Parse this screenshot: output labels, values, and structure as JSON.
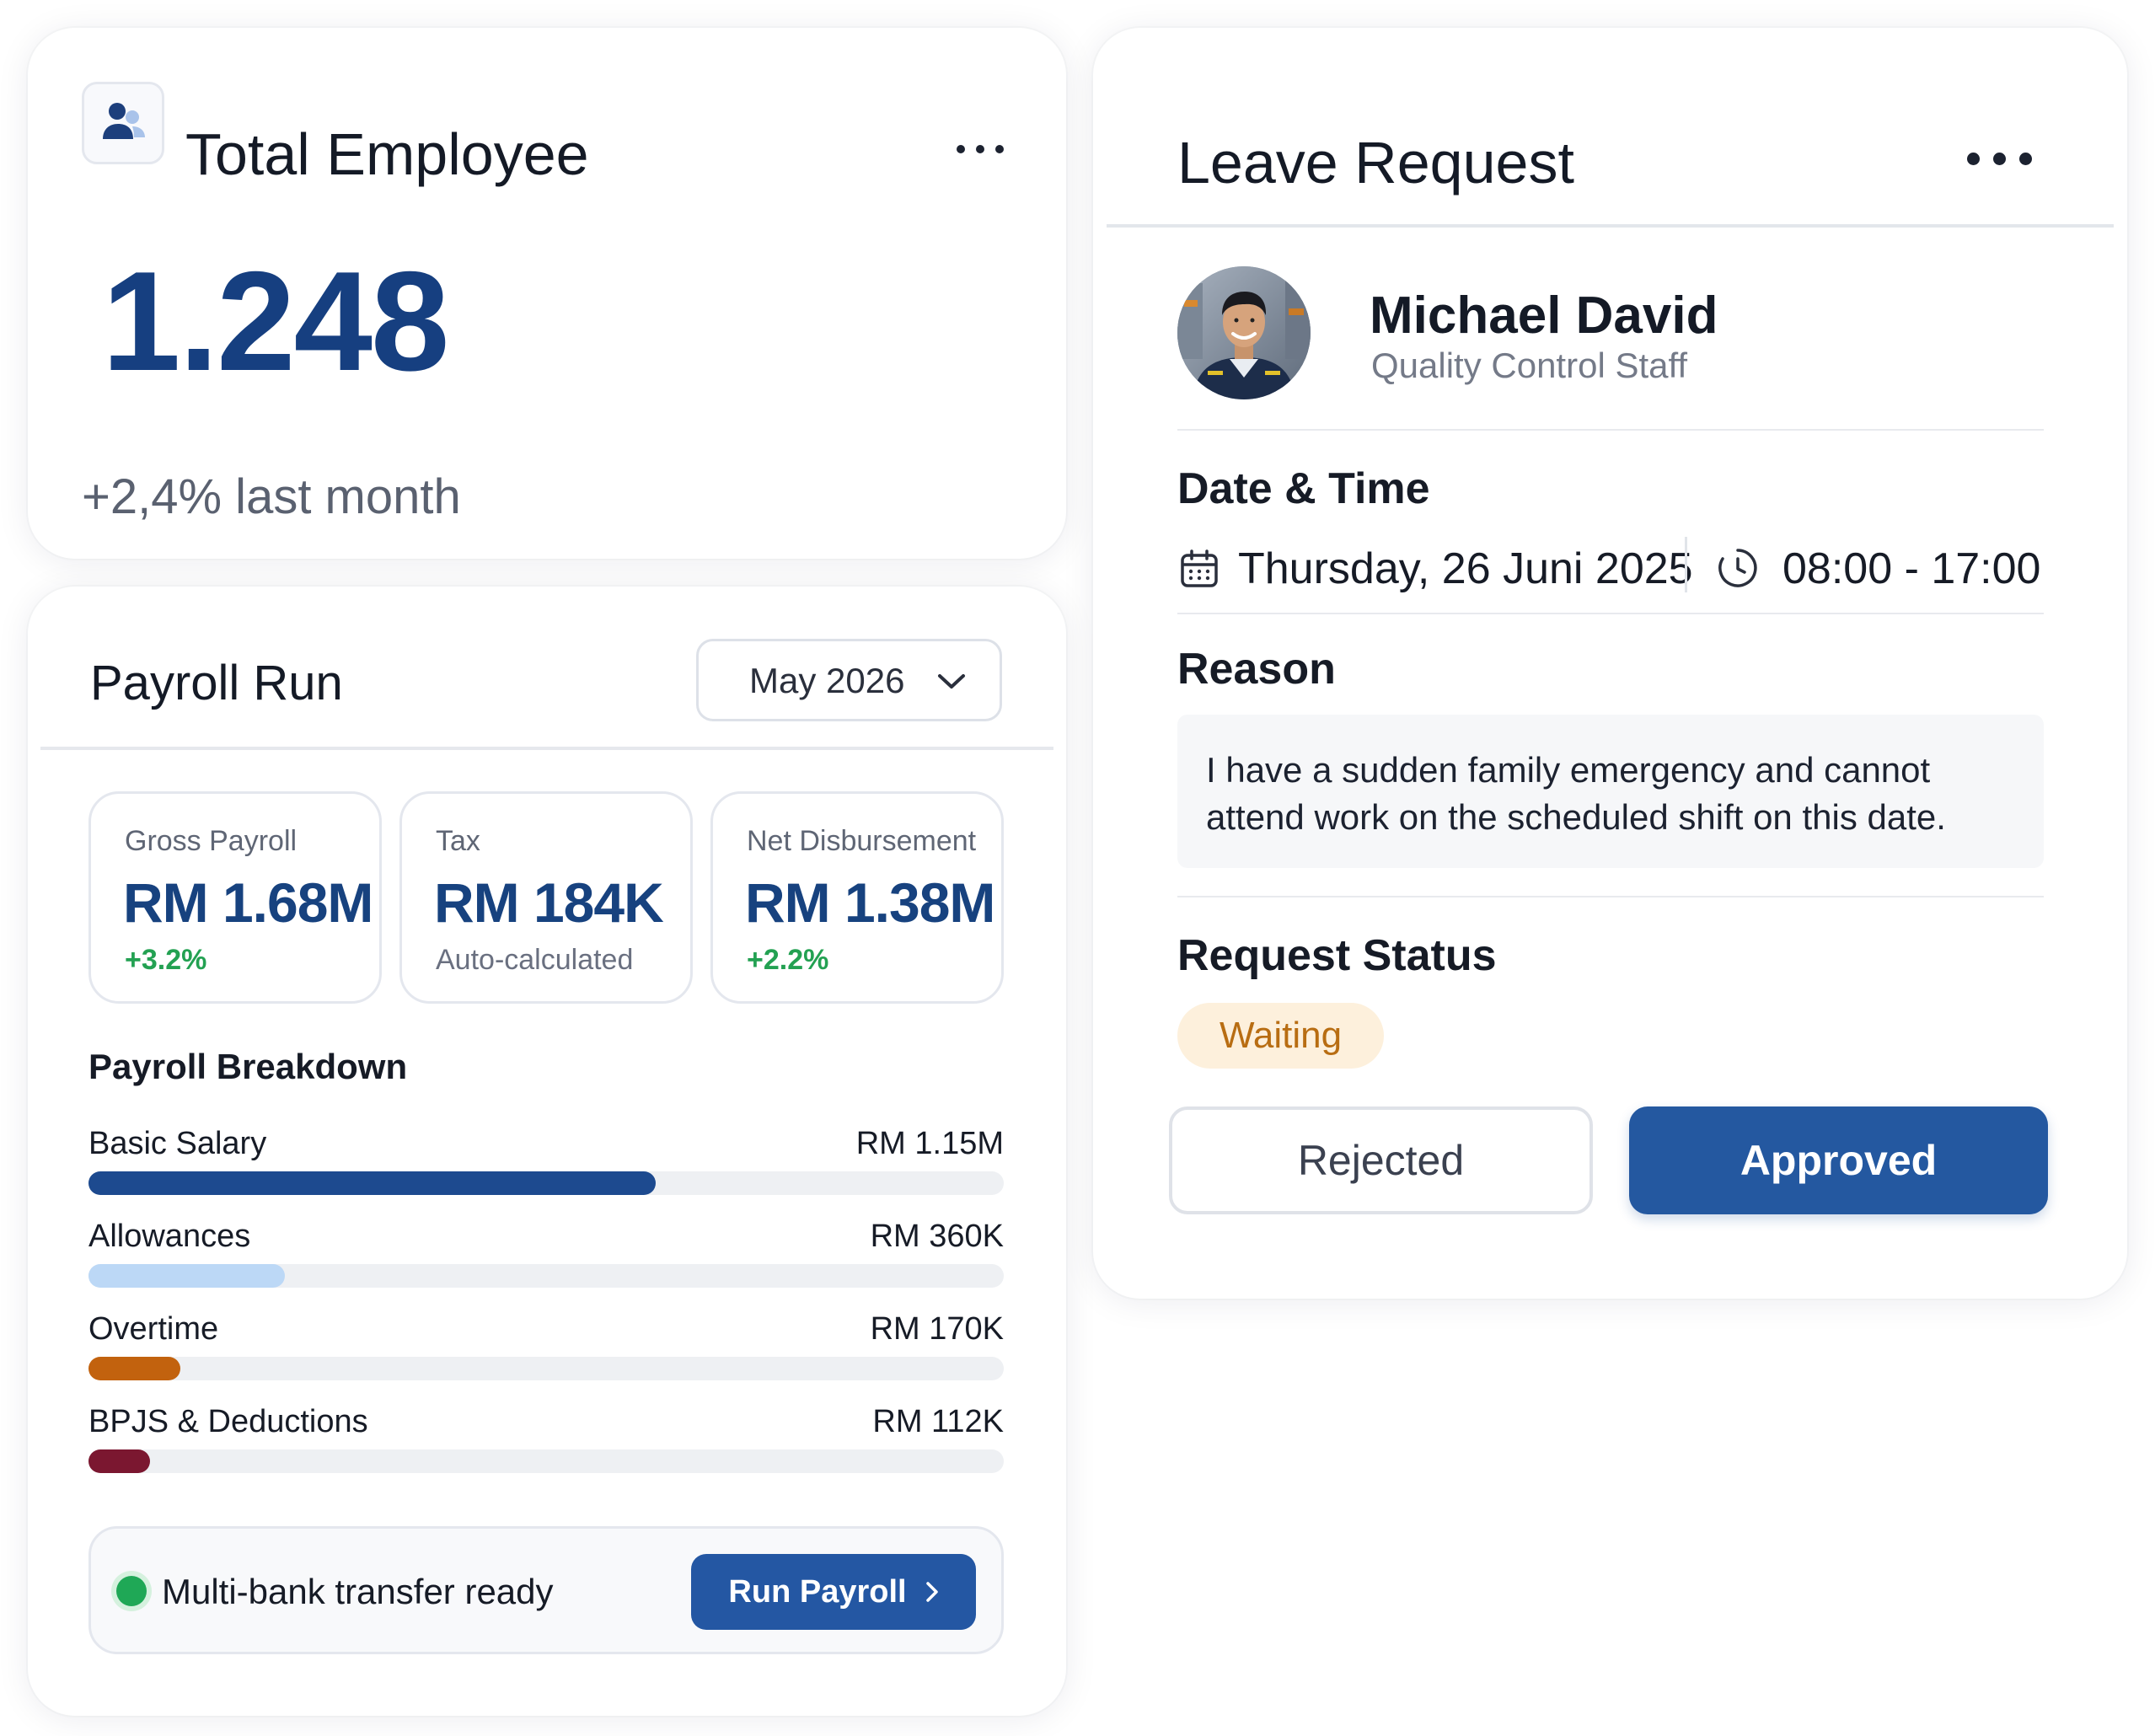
{
  "total_employee": {
    "title": "Total Employee",
    "value": "1.248",
    "growth": "+2,4% last month",
    "icon": "user-group-icon",
    "menu_icon": "more-horizontal-icon"
  },
  "payroll": {
    "title": "Payroll Run",
    "month_select": {
      "value": "May 2026",
      "icon": "chevron-down-icon"
    },
    "stats": [
      {
        "label": "Gross Payroll",
        "value": "RM 1.68M",
        "sub": "+3.2%",
        "sub_color": "#23a152"
      },
      {
        "label": "Tax",
        "value": "RM 184K",
        "sub": "Auto-calculated",
        "sub_color": "#6a7080"
      },
      {
        "label": "Net Disbursement",
        "value": "RM 1.38M",
        "sub": "+2.2%",
        "sub_color": "#23a152"
      }
    ],
    "breakdown_title": "Payroll Breakdown",
    "breakdown": [
      {
        "name": "Basic Salary",
        "amount": "RM 1.15M",
        "fraction": 0.62,
        "color": "#1d4a8f"
      },
      {
        "name": "Allowances",
        "amount": "RM 360K",
        "fraction": 0.215,
        "color": "#bcd8f6"
      },
      {
        "name": "Overtime",
        "amount": "RM 170K",
        "fraction": 0.1,
        "color": "#c2620e"
      },
      {
        "name": "BPJS & Deductions",
        "amount": "RM 112K",
        "fraction": 0.067,
        "color": "#7b1730"
      }
    ],
    "footer": {
      "status_text": "Multi-bank transfer ready",
      "status_color": "#1fa856",
      "run_button": "Run Payroll",
      "run_icon": "chevron-right-icon"
    }
  },
  "leave_request": {
    "title": "Leave Request",
    "menu_icon": "more-horizontal-icon",
    "employee": {
      "name": "Michael David",
      "role": "Quality Control Staff",
      "avatar": "employee-avatar"
    },
    "date_time": {
      "title": "Date & Time",
      "date": "Thursday, 26 Juni 2025",
      "time": "08:00 - 17:00",
      "date_icon": "calendar-icon",
      "time_icon": "clock-icon"
    },
    "reason": {
      "title": "Reason",
      "text": "I have a sudden family emergency and cannot attend work on the scheduled shift on this date."
    },
    "status": {
      "title": "Request Status",
      "value": "Waiting",
      "color": "#b86d12"
    },
    "actions": {
      "reject": "Rejected",
      "approve": "Approved"
    }
  },
  "colors": {
    "primary": "#2457a3",
    "headline_number": "#163f80",
    "positive": "#23a152",
    "waiting_bg": "#fdf0dc"
  }
}
